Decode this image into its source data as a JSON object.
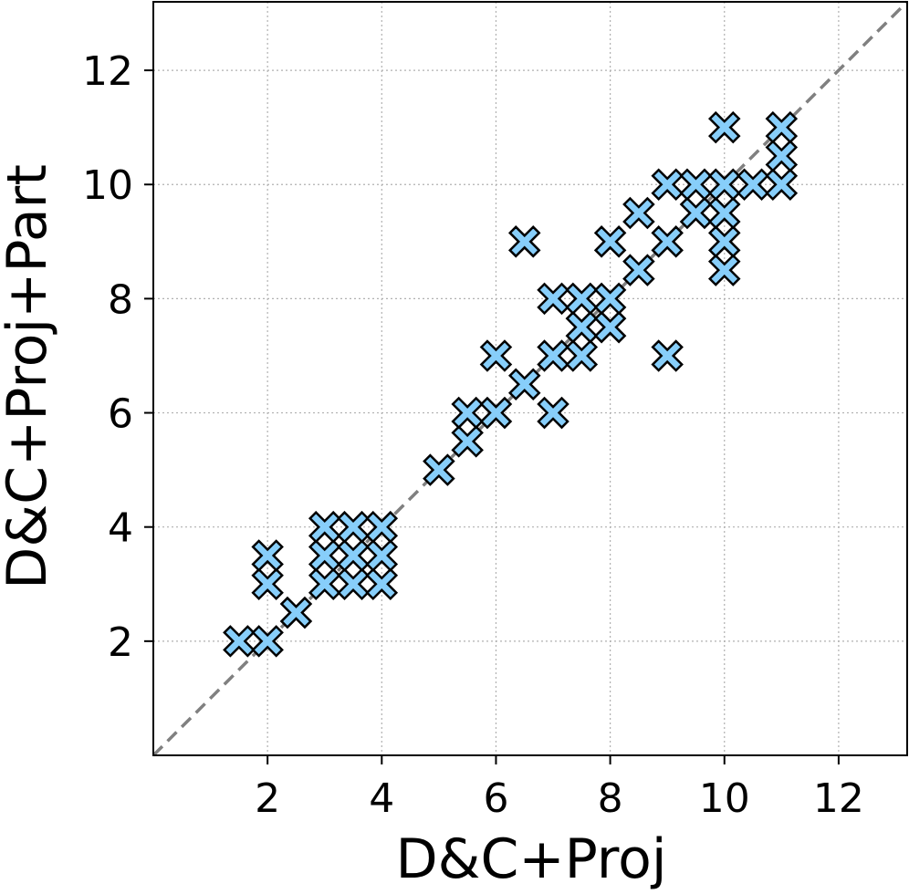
{
  "chart_data": {
    "type": "scatter",
    "title": "",
    "xlabel": "D&C+Proj",
    "ylabel": "D&C+Proj+Part",
    "xlim": [
      0,
      13.2
    ],
    "ylim": [
      0,
      13.2
    ],
    "xticks": [
      2,
      4,
      6,
      8,
      10,
      12
    ],
    "yticks": [
      2,
      4,
      6,
      8,
      10,
      12
    ],
    "xtick_labels": [
      "2",
      "4",
      "6",
      "8",
      "10",
      "12"
    ],
    "ytick_labels": [
      "2",
      "4",
      "6",
      "8",
      "10",
      "12"
    ],
    "grid": true,
    "reference_line": {
      "type": "y=x",
      "style": "dashed",
      "color": "#808080"
    },
    "marker": {
      "shape": "X",
      "fill": "#87CEFA",
      "edge": "#000000"
    },
    "series": [
      {
        "name": "points",
        "points": [
          [
            1.5,
            2
          ],
          [
            2,
            2
          ],
          [
            2,
            3
          ],
          [
            2,
            3.5
          ],
          [
            2.5,
            2.5
          ],
          [
            3,
            3
          ],
          [
            3,
            3.5
          ],
          [
            3,
            4
          ],
          [
            3.5,
            3
          ],
          [
            3.5,
            3.5
          ],
          [
            3.5,
            4
          ],
          [
            4,
            3
          ],
          [
            4,
            3.5
          ],
          [
            4,
            4
          ],
          [
            5,
            5
          ],
          [
            5.5,
            5.5
          ],
          [
            5.5,
            6
          ],
          [
            6,
            6
          ],
          [
            6,
            7
          ],
          [
            6.5,
            6.5
          ],
          [
            6.5,
            9
          ],
          [
            7,
            6
          ],
          [
            7,
            7
          ],
          [
            7,
            8
          ],
          [
            7.5,
            7
          ],
          [
            7.5,
            7.5
          ],
          [
            7.5,
            8
          ],
          [
            8,
            7.5
          ],
          [
            8,
            8
          ],
          [
            8,
            9
          ],
          [
            8.5,
            8.5
          ],
          [
            8.5,
            9.5
          ],
          [
            9,
            7
          ],
          [
            9,
            9
          ],
          [
            9,
            10
          ],
          [
            9.5,
            9.5
          ],
          [
            9.5,
            10
          ],
          [
            10,
            8.5
          ],
          [
            10,
            9
          ],
          [
            10,
            9.5
          ],
          [
            10,
            10
          ],
          [
            10,
            11
          ],
          [
            10.5,
            10
          ],
          [
            11,
            10
          ],
          [
            11,
            10.5
          ],
          [
            11,
            11
          ]
        ]
      }
    ]
  }
}
